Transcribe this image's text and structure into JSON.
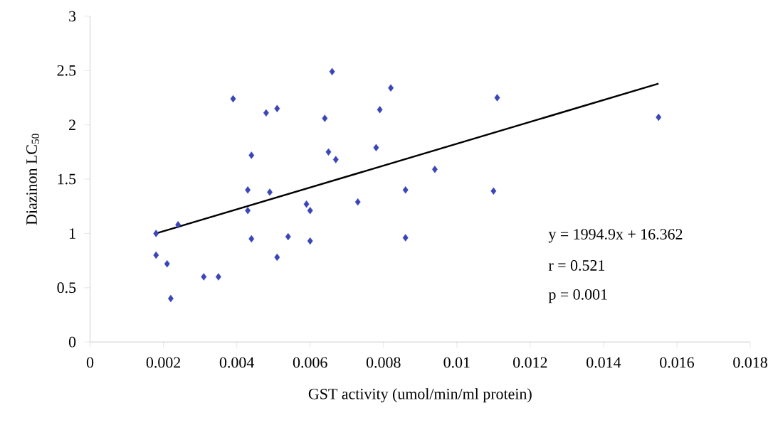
{
  "chart_data": {
    "type": "scatter",
    "xlabel": "GST activity (umol/min/ml protein)",
    "ylabel": "Diazinon LC$_{50}$",
    "xlim": [
      0,
      0.018
    ],
    "xticks": [
      0,
      0.002,
      0.004,
      0.006,
      0.008,
      0.01,
      0.012,
      0.014,
      0.016,
      0.018
    ],
    "ylim": [
      0,
      3
    ],
    "yticks": [
      0,
      0.5,
      1,
      1.5,
      2,
      2.5,
      3
    ],
    "grid": false,
    "series": [
      {
        "color": "#3a46b8",
        "marker": "diamond",
        "x": [
          0.0018,
          0.0018,
          0.0021,
          0.0022,
          0.0024,
          0.0031,
          0.0035,
          0.0039,
          0.0043,
          0.0043,
          0.0044,
          0.0044,
          0.0048,
          0.0049,
          0.0051,
          0.0051,
          0.0054,
          0.0059,
          0.006,
          0.006,
          0.0064,
          0.0065,
          0.0066,
          0.0067,
          0.0073,
          0.0078,
          0.0079,
          0.0082,
          0.0086,
          0.0086,
          0.0094,
          0.011,
          0.0111,
          0.0155
        ],
        "values": [
          1.0,
          0.8,
          0.72,
          0.4,
          1.08,
          0.6,
          0.6,
          2.24,
          1.21,
          1.4,
          0.95,
          1.72,
          2.11,
          1.38,
          0.78,
          2.15,
          0.97,
          1.27,
          1.21,
          0.93,
          2.06,
          1.75,
          2.49,
          1.68,
          1.29,
          1.79,
          2.14,
          2.34,
          1.4,
          0.96,
          1.59,
          1.39,
          2.25,
          2.07
        ]
      },
      {
        "type": "line",
        "color": "#000000",
        "marker": "none",
        "x": [
          0.0018,
          0.0155
        ],
        "values": [
          1.0,
          2.38
        ]
      }
    ],
    "annotations": [
      "y = 1994.9x + 16.362",
      "r =  0.521",
      "p = 0.001"
    ]
  }
}
